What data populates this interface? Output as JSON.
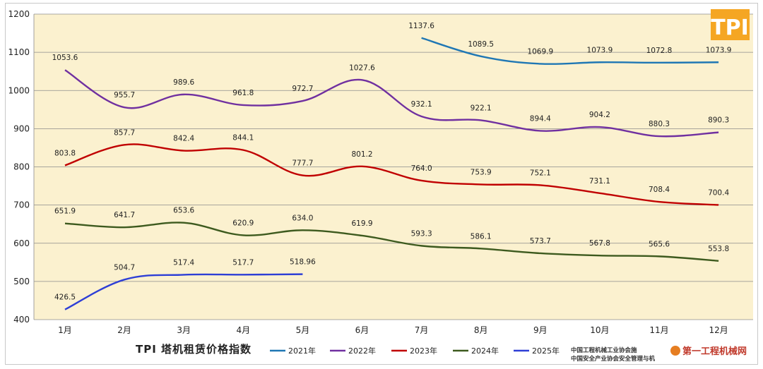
{
  "chart_data": {
    "type": "line",
    "title": "TPI 塔机租赁价格指数",
    "categories": [
      "1月",
      "2月",
      "3月",
      "4月",
      "5月",
      "6月",
      "7月",
      "8月",
      "9月",
      "10月",
      "11月",
      "12月"
    ],
    "ylim": [
      400,
      1200
    ],
    "yticks": [
      400,
      500,
      600,
      700,
      800,
      900,
      1000,
      1100,
      1200
    ],
    "grid": true,
    "background": "#fbf1cf",
    "legend_position": "bottom",
    "series": [
      {
        "name": "2021年",
        "color": "#1f77b4",
        "values": [
          null,
          null,
          null,
          null,
          null,
          null,
          1137.6,
          1089.5,
          1069.9,
          1073.9,
          1072.8,
          1073.9
        ],
        "labels": [
          null,
          null,
          null,
          null,
          null,
          null,
          "1137.6",
          "1089.5",
          "1069.9",
          "1073.9",
          "1072.8",
          "1073.9"
        ]
      },
      {
        "name": "2022年",
        "color": "#7030a0",
        "values": [
          1053.6,
          955.7,
          989.6,
          961.8,
          972.7,
          1027.6,
          932.1,
          922.1,
          894.4,
          904.2,
          880.3,
          890.3
        ],
        "labels": [
          "1053.6",
          "955.7",
          "989.6",
          "961.8",
          "972.7",
          "1027.6",
          "932.1",
          "922.1",
          "894.4",
          "904.2",
          "880.3",
          "890.3"
        ]
      },
      {
        "name": "2023年",
        "color": "#c00000",
        "values": [
          803.8,
          857.7,
          842.4,
          844.1,
          777.7,
          801.2,
          764.0,
          753.9,
          752.1,
          731.1,
          708.4,
          700.4
        ],
        "labels": [
          "803.8",
          "857.7",
          "842.4",
          "844.1",
          "777.7",
          "801.2",
          "764.0",
          "753.9",
          "752.1",
          "731.1",
          "708.4",
          "700.4"
        ]
      },
      {
        "name": "2024年",
        "color": "#3d5a1e",
        "values": [
          651.9,
          641.7,
          653.6,
          620.9,
          634.0,
          619.9,
          593.3,
          586.1,
          573.7,
          567.8,
          565.6,
          553.8
        ],
        "labels": [
          "651.9",
          "641.7",
          "653.6",
          "620.9",
          "634.0",
          "619.9",
          "593.3",
          "586.1",
          "573.7",
          "567.8",
          "565.6",
          "553.8"
        ]
      },
      {
        "name": "2025年",
        "color": "#2e3fd6",
        "values": [
          426.5,
          504.7,
          517.4,
          517.7,
          518.96,
          null,
          null,
          null,
          null,
          null,
          null,
          null
        ],
        "labels": [
          "426.5",
          "504.7",
          "517.4",
          "517.7",
          "518.96",
          null,
          null,
          null,
          null,
          null,
          null,
          null
        ]
      }
    ]
  },
  "logo": {
    "text": "TPI",
    "color": "#f5a623"
  },
  "watermark": {
    "line1": "中国工程机械工业协会施",
    "line2": "中国安全产业协会安全管理与机",
    "brand": "第一工程机械网"
  }
}
